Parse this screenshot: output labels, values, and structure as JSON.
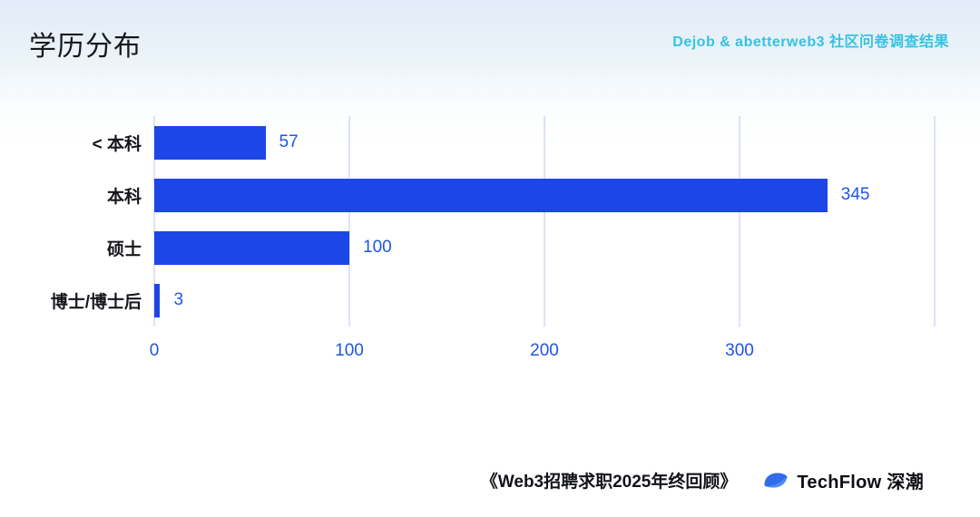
{
  "header": {
    "title": "学历分布",
    "subtitle": "Dejob & abetterweb3 社区问卷调查结果"
  },
  "chart_data": {
    "type": "bar",
    "orientation": "horizontal",
    "title": "学历分布",
    "categories": [
      "< 本科",
      "本科",
      "硕士",
      "博士/博士后"
    ],
    "values": [
      57,
      345,
      100,
      3
    ],
    "xlabel": "",
    "ylabel": "",
    "xlim": [
      0,
      400
    ],
    "xticks": [
      0,
      100,
      200,
      300
    ],
    "grid": true,
    "legend": false,
    "bar_color": "#1c46e6",
    "value_label_color": "#1e55e8",
    "gridline_color": "#b9c8ee"
  },
  "footer": {
    "source": "《Web3招聘求职2025年终回顾》",
    "brand": "TechFlow 深潮"
  },
  "colors": {
    "accent_cyan": "#35c3e3",
    "bar_blue": "#1c46e6",
    "label_blue": "#1e55e8",
    "title_dark": "#16181d",
    "background_top": "#e3ebf8"
  }
}
